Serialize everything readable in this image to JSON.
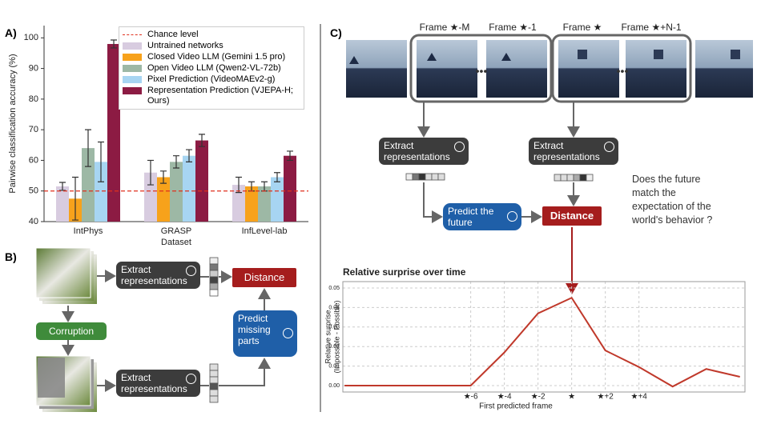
{
  "panel_labels": [
    "A)",
    "B)",
    "C)"
  ],
  "chart_data": [
    {
      "type": "bar",
      "ylabel": "Pairwise classification accuracy (%)",
      "xlabel": "Dataset",
      "categories": [
        "IntPhys",
        "GRASP",
        "InfLevel-lab"
      ],
      "series": [
        {
          "name": "Untrained networks",
          "color": "#d8cce0",
          "values": [
            51.5,
            56,
            52
          ],
          "errors": [
            1.3,
            4,
            2.5
          ]
        },
        {
          "name": "Closed Video LLM (Gemini 1.5 pro)",
          "color": "#f7a21b",
          "values": [
            47.5,
            54.5,
            51.5
          ],
          "errors": [
            7,
            2,
            1.5
          ]
        },
        {
          "name": "Open Video LLM (Qwen2-VL-72b)",
          "color": "#9db8a5",
          "values": [
            64,
            59.5,
            51.5
          ],
          "errors": [
            6,
            2,
            1.5
          ]
        },
        {
          "name": "Pixel Prediction (VideoMAEv2-g)",
          "color": "#a7d5f2",
          "values": [
            59.5,
            61.5,
            54.5
          ],
          "errors": [
            6.5,
            2,
            1.5
          ]
        },
        {
          "name": "Representation Prediction (VJEPA-H; Ours)",
          "color": "#8c1b43",
          "values": [
            98,
            66.5,
            61.5
          ],
          "errors": [
            1.3,
            2,
            1.5
          ]
        }
      ],
      "reference_lines": [
        {
          "value": 50,
          "label": "Chance level",
          "color": "#e0301e"
        }
      ],
      "ylim": [
        40,
        104
      ],
      "yticks": [
        40,
        50,
        60,
        70,
        80,
        90,
        100
      ],
      "grid": false,
      "legend": "upper right"
    },
    {
      "type": "line",
      "title": "Relative surprise over time",
      "ylabel": [
        "Relative surprise",
        "(Impossible - Possible)"
      ],
      "xlabel": "First predicted frame",
      "color": "#c0392b",
      "x": [
        -13.5,
        -6,
        -4,
        -2,
        0,
        2,
        4,
        6,
        8,
        10
      ],
      "values": [
        0,
        0,
        0.017,
        0.037,
        0.045,
        0.018,
        0.0095,
        -0.0005,
        0.0085,
        0.0045
      ],
      "xlim": [
        -13.6,
        10.3
      ],
      "ylim": [
        -0.0033,
        0.0533
      ],
      "xticks": [
        {
          "value": -6,
          "label": "★-6"
        },
        {
          "value": -4,
          "label": "★-4"
        },
        {
          "value": -2,
          "label": "★-2"
        },
        {
          "value": 0,
          "label": "★"
        },
        {
          "value": 2,
          "label": "★+2"
        },
        {
          "value": 4,
          "label": "★+4"
        }
      ],
      "yticks": [
        {
          "value": 0,
          "label": "0.00"
        },
        {
          "value": 0.01,
          "label": "0.01"
        },
        {
          "value": 0.02,
          "label": "0.02"
        },
        {
          "value": 0.03,
          "label": "0.03"
        },
        {
          "value": 0.04,
          "label": "0.04"
        },
        {
          "value": 0.05,
          "label": "0.05"
        }
      ],
      "grid": true
    }
  ],
  "panel_b": {
    "extract_top": "Extract representations",
    "distance": "Distance",
    "corruption": "Corruption",
    "predict": "Predict missing parts",
    "extract_bottom": "Extract representations"
  },
  "panel_c": {
    "frames": [
      "Frame ★-M",
      "Frame ★-1",
      "Frame ★",
      "Frame ★+N-1"
    ],
    "extract_left": "Extract representations",
    "extract_right": "Extract representations",
    "predict": "Predict the future",
    "distance": "Distance",
    "question": "Does the future match the expectation of the world's behavior ?"
  }
}
